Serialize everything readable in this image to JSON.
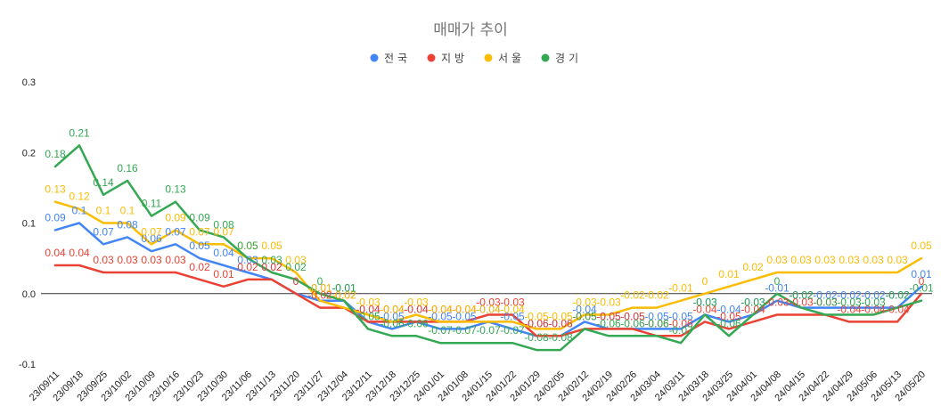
{
  "chart_data": {
    "type": "line",
    "title": "매매가 추이",
    "xlabel": "",
    "ylabel": "",
    "ylim": [
      -0.1,
      0.3
    ],
    "y_ticks": [
      0.3,
      0.2,
      0.1,
      0.0,
      -0.1
    ],
    "y_tick_labels": [
      "0.3",
      "0.2",
      "0.1",
      "0.0",
      "-0.1"
    ],
    "grid": false,
    "zero_line": true,
    "legend": "top",
    "data_labels": true,
    "categories": [
      "23/09/11",
      "23/09/18",
      "23/09/25",
      "23/10/02",
      "23/10/09",
      "23/10/16",
      "23/10/23",
      "23/10/30",
      "23/11/06",
      "23/11/13",
      "23/11/20",
      "23/11/27",
      "23/12/04",
      "23/12/11",
      "23/12/18",
      "23/12/25",
      "24/01/01",
      "24/01/08",
      "24/01/15",
      "24/01/22",
      "24/01/29",
      "24/02/05",
      "24/02/12",
      "24/02/19",
      "24/02/26",
      "24/03/04",
      "24/03/11",
      "24/03/18",
      "24/03/25",
      "24/04/01",
      "24/04/08",
      "24/04/15",
      "24/04/22",
      "24/04/29",
      "24/05/06",
      "24/05/13",
      "24/05/20"
    ],
    "series": [
      {
        "name": "전국",
        "color": "#4285F4",
        "values": [
          0.09,
          0.1,
          0.07,
          0.08,
          0.06,
          0.07,
          0.05,
          0.04,
          0.03,
          0.02,
          0,
          -0.01,
          -0.01,
          -0.04,
          -0.05,
          -0.04,
          -0.05,
          -0.05,
          -0.04,
          -0.05,
          -0.06,
          -0.06,
          -0.04,
          -0.05,
          -0.05,
          -0.05,
          -0.05,
          -0.03,
          -0.04,
          -0.03,
          -0.01,
          -0.02,
          -0.02,
          -0.02,
          -0.02,
          -0.02,
          0.01
        ]
      },
      {
        "name": "지방",
        "color": "#EA4335",
        "values": [
          0.04,
          0.04,
          0.03,
          0.03,
          0.03,
          0.03,
          0.02,
          0.01,
          0.02,
          0.02,
          0,
          -0.02,
          -0.02,
          -0.04,
          -0.04,
          -0.04,
          -0.04,
          -0.04,
          -0.03,
          -0.03,
          -0.06,
          -0.06,
          -0.05,
          -0.05,
          -0.05,
          -0.06,
          -0.06,
          -0.04,
          -0.05,
          -0.04,
          -0.03,
          -0.03,
          -0.03,
          -0.04,
          -0.04,
          -0.04,
          0
        ]
      },
      {
        "name": "서울",
        "color": "#FBBC04",
        "values": [
          0.13,
          0.12,
          0.1,
          0.1,
          0.07,
          0.09,
          0.07,
          0.07,
          0.05,
          0.05,
          0.03,
          -0.01,
          -0.02,
          -0.03,
          -0.04,
          -0.03,
          -0.04,
          -0.04,
          -0.04,
          -0.04,
          -0.05,
          -0.05,
          -0.03,
          -0.03,
          -0.02,
          -0.02,
          -0.01,
          0,
          0.01,
          0.02,
          0.03,
          0.03,
          0.03,
          0.03,
          0.03,
          0.03,
          0.05
        ]
      },
      {
        "name": "경기",
        "color": "#34A853",
        "values": [
          0.18,
          0.21,
          0.14,
          0.16,
          0.11,
          0.13,
          0.09,
          0.08,
          0.05,
          0.03,
          0.02,
          0,
          -0.01,
          -0.05,
          -0.06,
          -0.06,
          -0.07,
          -0.07,
          -0.07,
          -0.07,
          -0.08,
          -0.08,
          -0.05,
          -0.06,
          -0.06,
          -0.06,
          -0.07,
          -0.03,
          -0.06,
          -0.03,
          0,
          -0.02,
          -0.03,
          -0.03,
          -0.03,
          -0.02,
          -0.01
        ]
      }
    ]
  }
}
